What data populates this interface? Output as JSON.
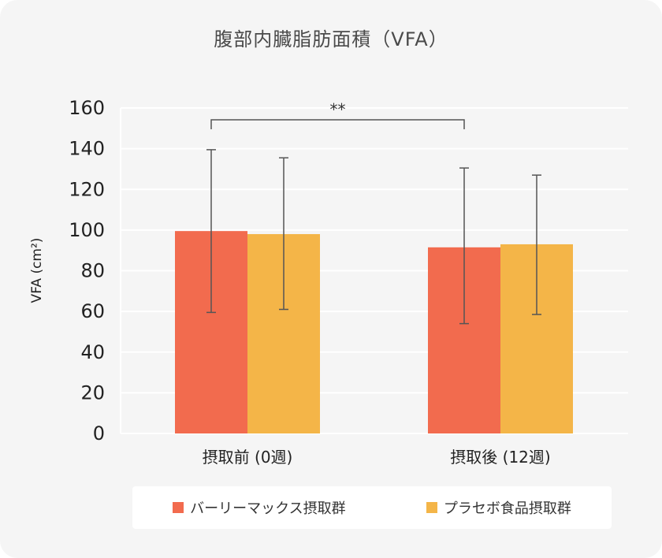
{
  "chart_data": {
    "type": "bar",
    "title": "腹部内臓脂肪面積（VFA）",
    "ylabel": "VFA (cm²)",
    "xlabel": "",
    "ylim": [
      0,
      160
    ],
    "yticks": [
      0,
      20,
      40,
      60,
      80,
      100,
      120,
      140,
      160
    ],
    "categories": [
      "摂取前 (0週)",
      "摂取後 (12週)"
    ],
    "series": [
      {
        "name": "バーリーマックス摂取群",
        "color": "#f26b4e",
        "values": [
          99.5,
          91.5
        ],
        "error_low": [
          59.5,
          54
        ],
        "error_high": [
          139.5,
          130.5
        ]
      },
      {
        "name": "プラセボ食品摂取群",
        "color": "#f4b548",
        "values": [
          98,
          93
        ],
        "error_low": [
          61,
          58.5
        ],
        "error_high": [
          135.5,
          127
        ]
      }
    ],
    "significance": {
      "label": "**",
      "series_index": 0,
      "from_category": 0,
      "to_category": 1
    },
    "grid": true,
    "legend_position": "bottom"
  }
}
